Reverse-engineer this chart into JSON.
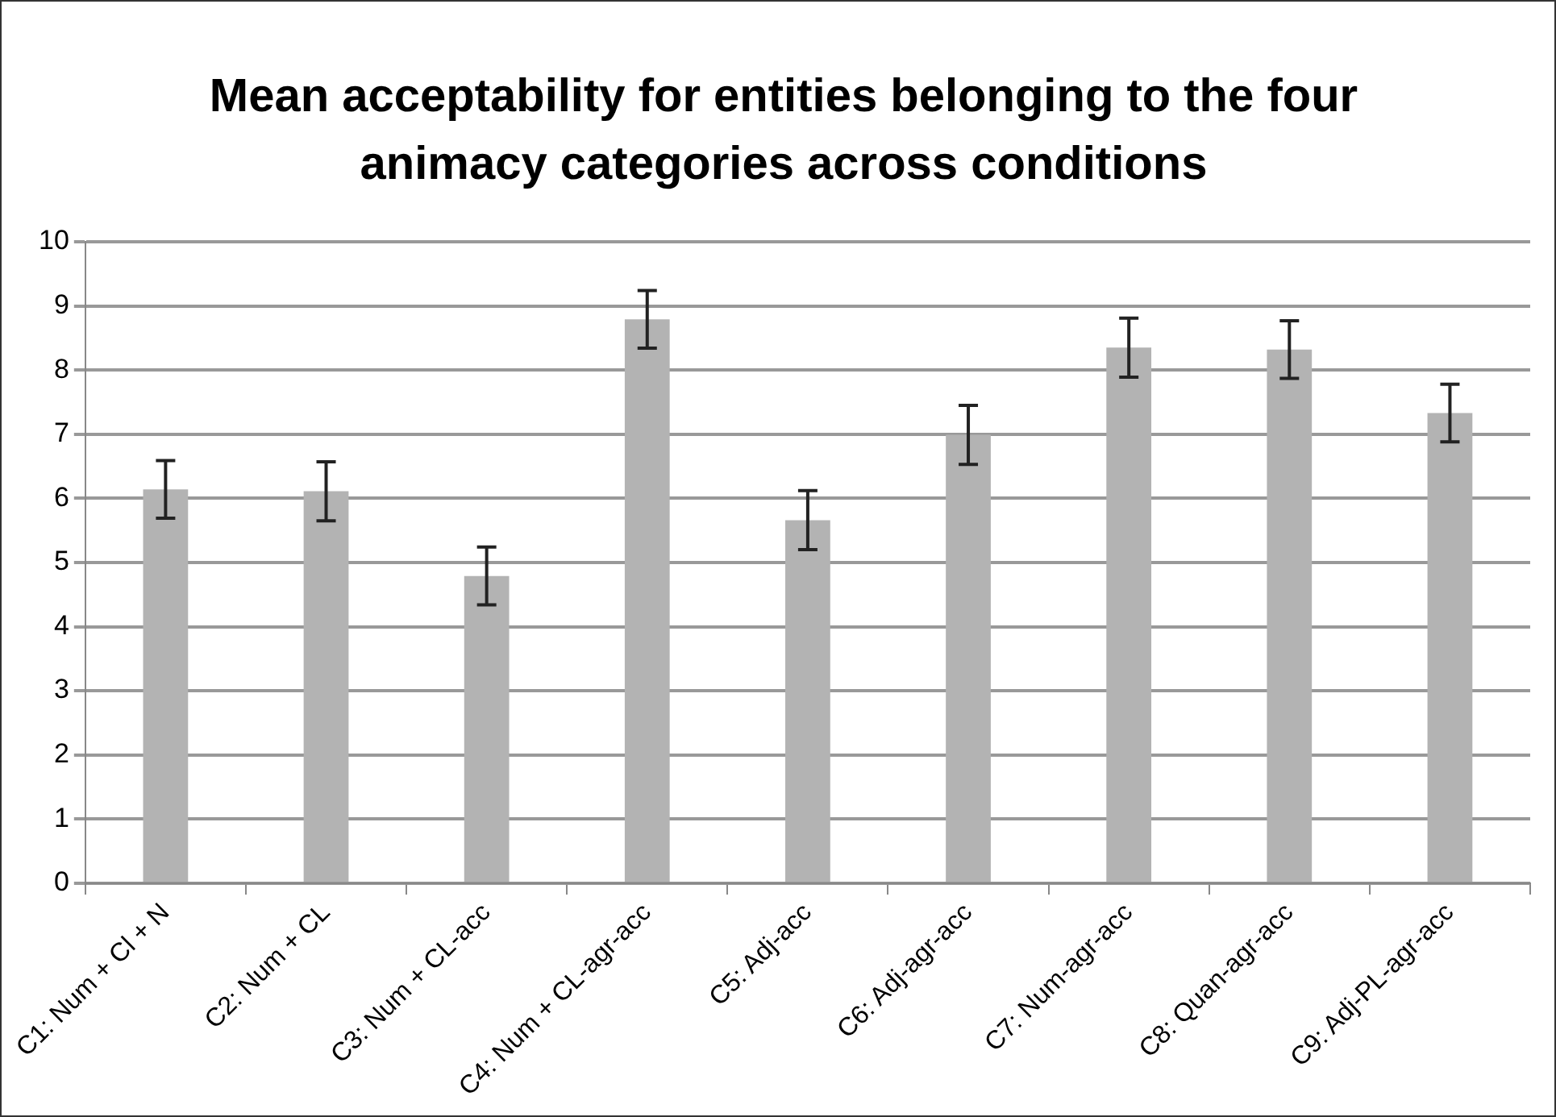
{
  "chart_data": {
    "type": "bar",
    "title": "Mean acceptability for entities belonging to the four animacy categories across conditions",
    "categories": [
      "C1: Num + Cl + N",
      "C2: Num + CL",
      "C3: Num + CL-acc",
      "C4: Num + CL-agr-acc",
      "C5: Adj-acc",
      "C6: Adj-agr-acc",
      "C7: Num-agr-acc",
      "C8: Quan-agr-acc",
      "C9: Adj-PL-agr-acc"
    ],
    "values": [
      6.14,
      6.11,
      4.79,
      8.79,
      5.66,
      6.99,
      8.35,
      8.32,
      7.33
    ],
    "errors": [
      0.45,
      0.46,
      0.45,
      0.45,
      0.46,
      0.46,
      0.46,
      0.45,
      0.45
    ],
    "color": "#b3b3b3",
    "ylim": [
      0,
      10
    ],
    "yticks": [
      0,
      1,
      2,
      3,
      4,
      5,
      6,
      7,
      8,
      9,
      10
    ],
    "grid": "y",
    "legend": false
  }
}
